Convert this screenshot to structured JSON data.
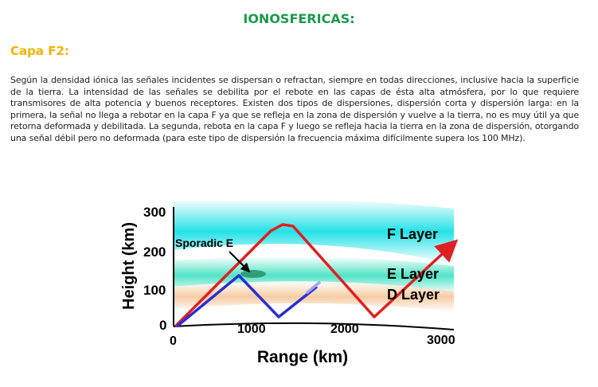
{
  "header": {
    "title": "IONOSFERICAS:",
    "title_color": "#1a9b4b"
  },
  "section": {
    "title": "Capa F2:",
    "title_color": "#f0b400",
    "paragraph": "Según la densidad iónica las señales incidentes se dispersan o refractan, siempre en todas direcciones, inclusive hacia la superficie de la tierra. La intensidad de las señales se debilita por el rebote en las capas de ésta alta atmósfera, por lo que requiere transmisores de alta potencia y buenos receptores. Existen dos tipos de dispersiones, dispersión corta y dispersión larga: en la primera, la señal no llega a rebotar en la capa F ya que se refleja en la zona de dispersión y vuelve a la tierra, no es muy útil ya que retorna deformada y debilitada. La segunda, rebota en la capa F y luego se refleja hacia la tierra en la zona de dispersión, otorgando una señal débil pero no deformada (para este tipo de dispersión la frecuencia máxima difícilmente supera los 100 MHz)."
  },
  "figure": {
    "ylabel": "Height (km)",
    "xlabel": "Range (km)",
    "y_ticks": [
      "300",
      "200",
      "100",
      "0"
    ],
    "x_ticks": [
      "0",
      "1000",
      "2000",
      "3000"
    ],
    "layer_labels": {
      "f": "F Layer",
      "e": "E Layer",
      "d": "D Layer",
      "sporadic": "Sporadic E"
    },
    "colors": {
      "f_layer": "#19e0e6",
      "e_layer": "#3ee0c0",
      "d_layer": "#f5c79a",
      "long_path": "#e02020",
      "short_path": "#2a2fd0",
      "sporadic": "#2a8f6a"
    }
  }
}
